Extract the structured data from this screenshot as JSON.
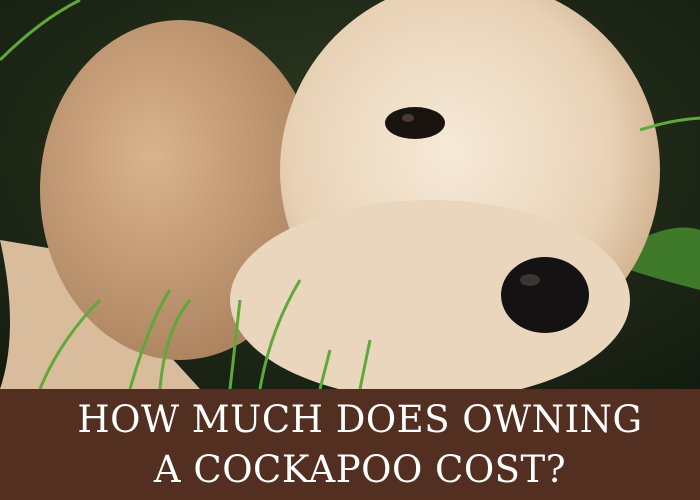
{
  "photo": {
    "subject": "cockapoo puppy lying in grass"
  },
  "banner": {
    "line1": "HOW MUCH DOES OWNING",
    "line2": "A COCKAPOO COST?",
    "background_color": "#532f22",
    "text_color": "#ffffff"
  }
}
